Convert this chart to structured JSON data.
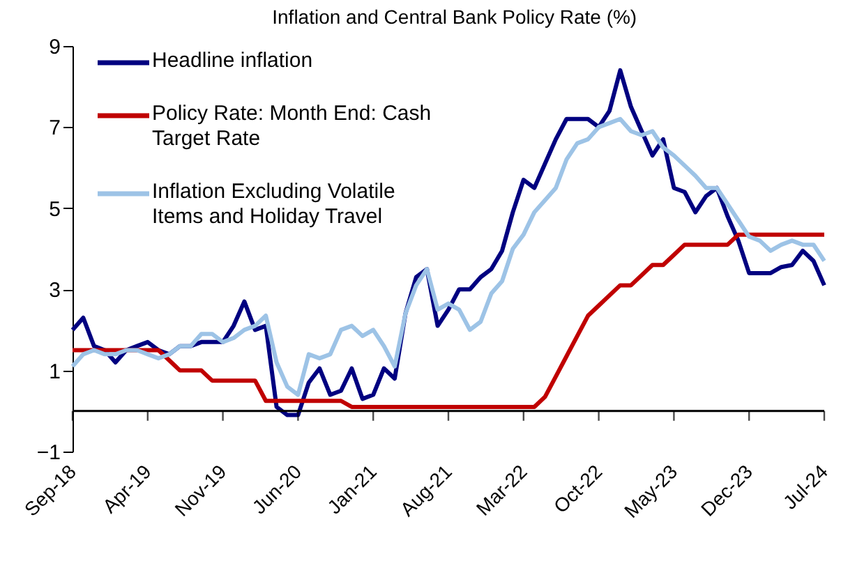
{
  "chart_data": {
    "type": "line",
    "title": "Inflation and Central Bank Policy Rate (%)",
    "categories": [
      "Sep-18",
      null,
      null,
      null,
      null,
      null,
      null,
      "Apr-19",
      null,
      null,
      null,
      null,
      null,
      null,
      "Nov-19",
      null,
      null,
      null,
      null,
      null,
      null,
      "Jun-20",
      null,
      null,
      null,
      null,
      null,
      null,
      "Jan-21",
      null,
      null,
      null,
      null,
      null,
      null,
      "Aug-21",
      null,
      null,
      null,
      null,
      null,
      null,
      "Mar-22",
      null,
      null,
      null,
      null,
      null,
      null,
      "Oct-22",
      null,
      null,
      null,
      null,
      null,
      null,
      "May-23",
      null,
      null,
      null,
      null,
      null,
      null,
      "Dec-23",
      null,
      null,
      null,
      null,
      null,
      null,
      "Jul-24"
    ],
    "series": [
      {
        "name": "Headline inflation",
        "color": "#000080",
        "values": [
          2.0,
          2.3,
          1.6,
          1.5,
          1.2,
          1.5,
          1.6,
          1.7,
          1.5,
          1.4,
          1.6,
          1.6,
          1.7,
          1.7,
          1.7,
          2.1,
          2.7,
          2.0,
          2.1,
          0.1,
          -0.1,
          -0.1,
          0.7,
          1.05,
          0.4,
          0.5,
          1.05,
          0.3,
          0.4,
          1.05,
          0.8,
          2.4,
          3.3,
          3.5,
          2.1,
          2.5,
          3.0,
          3.0,
          3.3,
          3.5,
          3.95,
          4.9,
          5.7,
          5.5,
          6.1,
          6.7,
          7.2,
          7.2,
          7.2,
          7.0,
          7.4,
          8.4,
          7.5,
          6.9,
          6.3,
          6.7,
          5.5,
          5.4,
          4.9,
          5.3,
          5.5,
          4.8,
          4.2,
          3.4,
          3.4,
          3.4,
          3.55,
          3.6,
          3.95,
          3.7,
          3.1
        ]
      },
      {
        "name": "Policy Rate: Month End: Cash Target Rate",
        "color": "#c00000",
        "values": [
          1.5,
          1.5,
          1.5,
          1.5,
          1.5,
          1.5,
          1.5,
          1.5,
          1.5,
          1.25,
          1.0,
          1.0,
          1.0,
          0.75,
          0.75,
          0.75,
          0.75,
          0.75,
          0.25,
          0.25,
          0.25,
          0.25,
          0.25,
          0.25,
          0.25,
          0.25,
          0.1,
          0.1,
          0.1,
          0.1,
          0.1,
          0.1,
          0.1,
          0.1,
          0.1,
          0.1,
          0.1,
          0.1,
          0.1,
          0.1,
          0.1,
          0.1,
          0.1,
          0.1,
          0.35,
          0.85,
          1.35,
          1.85,
          2.35,
          2.6,
          2.85,
          3.1,
          3.1,
          3.35,
          3.6,
          3.6,
          3.85,
          4.1,
          4.1,
          4.1,
          4.1,
          4.1,
          4.35,
          4.35,
          4.35,
          4.35,
          4.35,
          4.35,
          4.35,
          4.35,
          4.35
        ]
      },
      {
        "name": "Inflation Excluding Volatile Items and Holiday Travel",
        "color": "#9dc3e6",
        "values": [
          1.1,
          1.4,
          1.5,
          1.4,
          1.4,
          1.5,
          1.5,
          1.4,
          1.3,
          1.4,
          1.6,
          1.6,
          1.9,
          1.9,
          1.7,
          1.8,
          2.0,
          2.1,
          2.35,
          1.2,
          0.6,
          0.4,
          1.4,
          1.3,
          1.4,
          2.0,
          2.1,
          1.85,
          2.0,
          1.6,
          1.1,
          2.4,
          3.1,
          3.5,
          2.5,
          2.65,
          2.5,
          2.0,
          2.2,
          2.9,
          3.2,
          4.0,
          4.35,
          4.9,
          5.2,
          5.5,
          6.2,
          6.6,
          6.7,
          7.0,
          7.1,
          7.2,
          6.9,
          6.8,
          6.9,
          6.5,
          6.3,
          6.05,
          5.8,
          5.5,
          5.5,
          5.1,
          4.7,
          4.3,
          4.2,
          3.95,
          4.1,
          4.2,
          4.1,
          4.1,
          3.7
        ]
      }
    ],
    "ylim": [
      -1,
      9
    ],
    "yticks": [
      -1,
      1,
      3,
      5,
      7,
      9
    ],
    "grid": false,
    "legend": "top left",
    "marker": "none",
    "line_style": "solid"
  }
}
